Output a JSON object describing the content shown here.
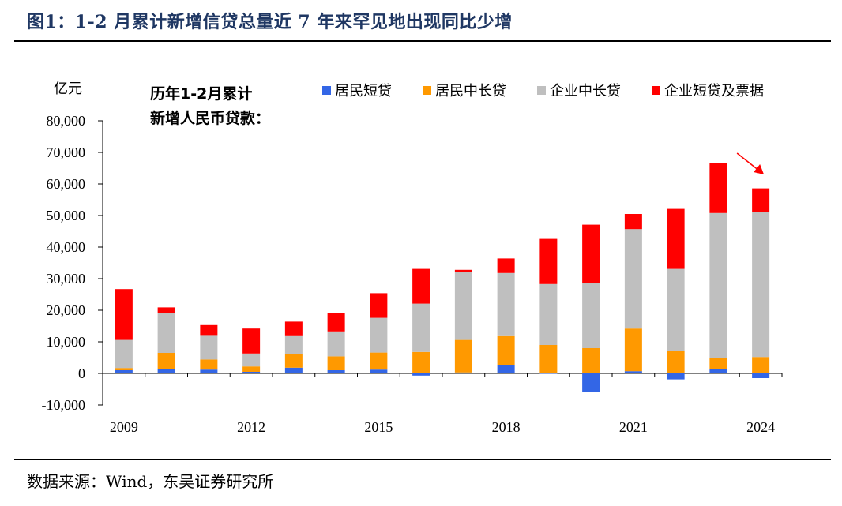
{
  "title": "图1：1-2 月累计新增信贷总量近 7 年来罕见地出现同比少增",
  "source": "数据来源：Wind，东吴证券研究所",
  "chart_data": {
    "type": "bar",
    "stacked": true,
    "unit_label": "亿元",
    "annotation": [
      "历年1-2月累计",
      "新增人民币贷款："
    ],
    "categories": [
      "2009",
      "2010",
      "2011",
      "2012",
      "2013",
      "2014",
      "2015",
      "2016",
      "2017",
      "2018",
      "2019",
      "2020",
      "2021",
      "2022",
      "2023",
      "2024"
    ],
    "x_tick_labels": [
      "2009",
      "2012",
      "2015",
      "2018",
      "2021",
      "2024"
    ],
    "ylim": [
      -10000,
      80000
    ],
    "y_ticks": [
      -10000,
      0,
      10000,
      20000,
      30000,
      40000,
      50000,
      60000,
      70000,
      80000
    ],
    "y_tick_labels": [
      "-10,000",
      "0",
      "10,000",
      "20,000",
      "30,000",
      "40,000",
      "50,000",
      "60,000",
      "70,000",
      "80,000"
    ],
    "legend_position": "top-right",
    "series": [
      {
        "name": "居民短贷",
        "color": "#3366e6",
        "values": [
          1000,
          1500,
          1200,
          500,
          1800,
          1000,
          1200,
          -700,
          300,
          2500,
          -100,
          -5800,
          700,
          -1900,
          1500,
          -1500
        ]
      },
      {
        "name": "居民中长贷",
        "color": "#ff9900",
        "values": [
          700,
          5000,
          3200,
          1700,
          4200,
          4400,
          5400,
          6800,
          10300,
          9300,
          9000,
          8000,
          13500,
          7000,
          3300,
          5200
        ]
      },
      {
        "name": "企业中长贷",
        "color": "#bfbfbf",
        "values": [
          8900,
          12700,
          7500,
          4100,
          5800,
          7900,
          11000,
          15300,
          21500,
          20000,
          19300,
          20600,
          31500,
          26100,
          46000,
          45900
        ]
      },
      {
        "name": "企业短贷及票据",
        "color": "#ff0000",
        "values": [
          16100,
          1700,
          3400,
          7900,
          4600,
          5700,
          7800,
          11000,
          700,
          4600,
          14300,
          18500,
          4800,
          19000,
          15800,
          7500
        ]
      }
    ],
    "totals": [
      26700,
      20900,
      15300,
      14200,
      16400,
      19000,
      25400,
      33100,
      32800,
      36400,
      42600,
      47100,
      50500,
      52100,
      66600,
      58600
    ],
    "grid": false,
    "arrow_annotation": "red arrow pointing down toward 2024 bar"
  }
}
